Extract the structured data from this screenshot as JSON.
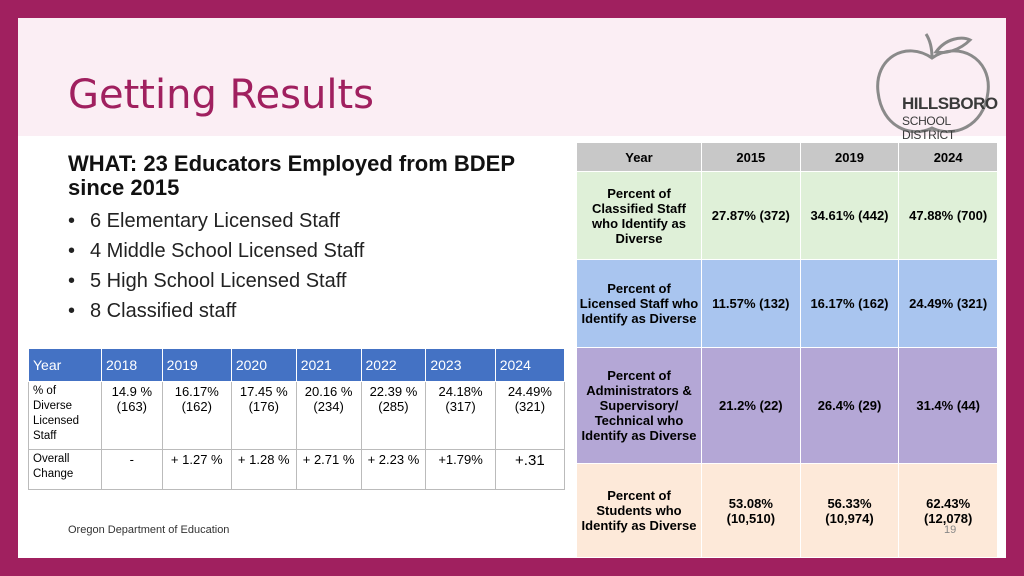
{
  "title": "Getting Results",
  "logo": {
    "line1": "HILLSBORO",
    "line2": "SCHOOL DISTRICT"
  },
  "heading": "WHAT: 23 Educators Employed from BDEP since 2015",
  "bullets": [
    "6 Elementary Licensed Staff",
    "4 Middle School Licensed Staff",
    "5 High School Licensed Staff",
    "8 Classified staff"
  ],
  "left_table": {
    "headers": [
      "Year",
      "2018",
      "2019",
      "2020",
      "2021",
      "2022",
      "2023",
      "2024"
    ],
    "rows": [
      {
        "label": "% of Diverse Licensed Staff",
        "cells": [
          "14.9 % (163)",
          "16.17% (162)",
          "17.45 % (176)",
          "20.16 % (234)",
          "22.39 % (285)",
          "24.18% (317)",
          "24.49% (321)"
        ]
      },
      {
        "label": "Overall Change",
        "cells": [
          "-",
          "+ 1.27 %",
          "+ 1.28 %",
          "+ 2.71 %",
          "+ 2.23 %",
          "+1.79%",
          "+.31"
        ]
      }
    ]
  },
  "right_table": {
    "headers": [
      "Year",
      "2015",
      "2019",
      "2024"
    ],
    "rows": [
      {
        "label": "Percent of Classified Staff who Identify as Diverse",
        "cells": [
          "27.87% (372)",
          "34.61% (442)",
          "47.88% (700)"
        ]
      },
      {
        "label": "Percent of Licensed Staff who Identify as Diverse",
        "cells": [
          "11.57% (132)",
          "16.17% (162)",
          "24.49% (321)"
        ]
      },
      {
        "label": "Percent of Administrators & Supervisory/ Technical who Identify as Diverse",
        "cells": [
          "21.2% (22)",
          "26.4% (29)",
          "31.4% (44)"
        ]
      },
      {
        "label": "Percent of Students who Identify as Diverse",
        "cells": [
          "53.08% (10,510)",
          "56.33% (10,974)",
          "62.43% (12,078)"
        ]
      }
    ]
  },
  "footer": "Oregon Department of Education",
  "page_number": "19",
  "colors": {
    "frame": "#a0205f",
    "title": "#a0205f",
    "header_blue": "#4472c4"
  }
}
